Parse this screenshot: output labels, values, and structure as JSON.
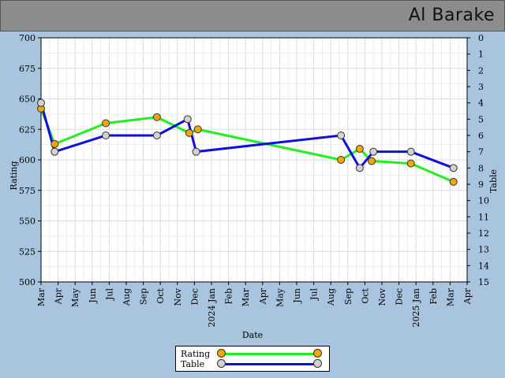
{
  "header": {
    "player_name": "Al Barake"
  },
  "colors": {
    "background": "#a9c4de",
    "header": "#8c8c8c",
    "rating_line": "#22ee22",
    "rating_marker": "#f2a800",
    "table_line": "#1010dd",
    "table_marker": "#d2d2d2"
  },
  "chart_data": {
    "type": "line",
    "title": "",
    "xlabel": "Date",
    "ylabel_left": "Rating",
    "ylabel_right": "Table",
    "ylim_left": [
      500,
      700
    ],
    "yticks_left": [
      500,
      525,
      550,
      575,
      600,
      625,
      650,
      675,
      700
    ],
    "ylim_right": [
      15,
      0
    ],
    "yticks_right": [
      0,
      1,
      2,
      3,
      4,
      5,
      6,
      7,
      8,
      9,
      10,
      11,
      12,
      13,
      14,
      15
    ],
    "x_months": [
      "Mar",
      "Apr",
      "May",
      "Jun",
      "Jul",
      "Aug",
      "Sep",
      "Oct",
      "Nov",
      "Dec",
      "2024 Jan",
      "Feb",
      "Mar",
      "Apr",
      "May",
      "Jun",
      "Jul",
      "Aug",
      "Sep",
      "Oct",
      "Nov",
      "Dec",
      "2025 Jan",
      "Feb",
      "Mar",
      "Apr"
    ],
    "series": [
      {
        "name": "Rating",
        "axis": "left",
        "x": [
          0.0,
          0.8,
          3.8,
          6.8,
          8.7,
          9.2,
          17.6,
          18.7,
          19.4,
          21.7,
          24.2
        ],
        "values": [
          642,
          613,
          630,
          635,
          622,
          625,
          600,
          609,
          599,
          597,
          582
        ]
      },
      {
        "name": "Table",
        "axis": "right",
        "x": [
          0.0,
          0.8,
          3.8,
          6.8,
          8.6,
          9.1,
          17.6,
          18.7,
          19.5,
          21.7,
          24.2
        ],
        "values": [
          4,
          7,
          6,
          6,
          5,
          7,
          6,
          8,
          7,
          7,
          8
        ]
      }
    ],
    "legend": {
      "position": "bottom-center",
      "entries": [
        "Rating",
        "Table"
      ]
    }
  }
}
